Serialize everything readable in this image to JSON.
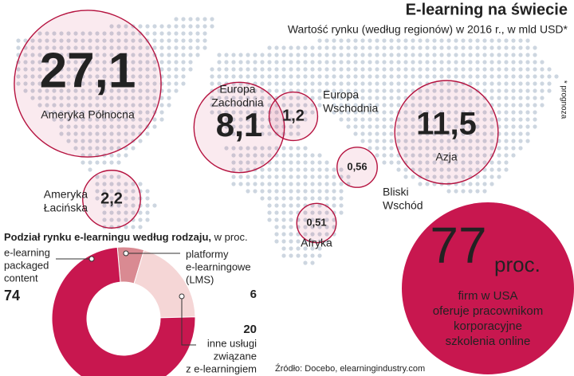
{
  "header": {
    "title": "E-learning na świecie",
    "subtitle": "Wartość rynku (według regionów) w 2016 r., w mld USD*",
    "note": "* prognoza"
  },
  "regions": [
    {
      "name": [
        "Ameryka Północna"
      ],
      "value": 27.1,
      "value_label": "27,1"
    },
    {
      "name": [
        "Europa",
        "Zachodnia"
      ],
      "value": 8.1,
      "value_label": "8,1"
    },
    {
      "name": [
        "Europa",
        "Wschodnia"
      ],
      "value": 1.2,
      "value_label": "1,2"
    },
    {
      "name": [
        "Azja"
      ],
      "value": 11.5,
      "value_label": "11,5"
    },
    {
      "name": [
        "Bliski",
        "Wschód"
      ],
      "value": 0.56,
      "value_label": "0,56"
    },
    {
      "name": [
        "Ameryka",
        "Łacińska"
      ],
      "value": 2.2,
      "value_label": "2,2"
    },
    {
      "name": [
        "Afryka"
      ],
      "value": 0.51,
      "value_label": "0,51"
    }
  ],
  "chart_data": {
    "type": "donut",
    "title": "Podział rynku e-learningu według rodzaju,",
    "subtitle": "w proc.",
    "categories": [
      [
        "e-learning",
        "packaged",
        "content"
      ],
      [
        "platformy",
        "e-learningowe",
        "(LMS)"
      ],
      [
        "inne usługi",
        "związane",
        "z e-learningiem"
      ]
    ],
    "values": [
      74,
      6,
      20
    ],
    "colors": [
      "#c8174f",
      "#d98a92",
      "#f5d6d6"
    ]
  },
  "stat": {
    "number": "77",
    "unit": "proc.",
    "lines": [
      "firm w USA",
      "oferuje pracownikom",
      "korporacyjne",
      "szkolenia online"
    ]
  },
  "source": "Źródło: Docebo, elearningindustry.com"
}
